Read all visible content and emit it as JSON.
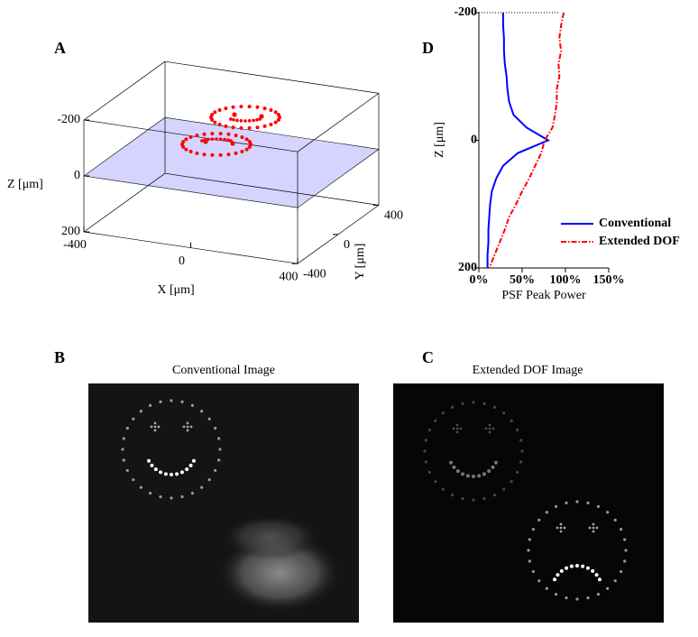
{
  "chart_data": [
    {
      "type": "scatter3d",
      "label": "A",
      "xlabel": "X [μm]",
      "ylabel": "Y [μm]",
      "zlabel": "Z [μm]",
      "xlim": [
        -400,
        400
      ],
      "ylim": [
        -400,
        400
      ],
      "zlim": [
        -200,
        200
      ],
      "xticks": [
        -400,
        0,
        400
      ],
      "yticks": [
        -400,
        0,
        400
      ],
      "zticks": [
        -200,
        0,
        200
      ],
      "plane": {
        "z": 0,
        "color": "#ccccff"
      },
      "color": "#ff0000"
    },
    {
      "type": "image",
      "label": "B",
      "title": "Conventional Image"
    },
    {
      "type": "image",
      "label": "C",
      "title": "Extended DOF Image"
    },
    {
      "type": "line",
      "label": "D",
      "orientation": "horizontal",
      "xlabel": "PSF Peak Power",
      "ylabel": "Z [μm]",
      "z": [
        -200,
        -180,
        -160,
        -140,
        -120,
        -100,
        -80,
        -60,
        -40,
        -20,
        0,
        20,
        40,
        60,
        80,
        100,
        120,
        140,
        160,
        180,
        200
      ],
      "series": [
        {
          "name": "Conventional",
          "color": "#0000ff",
          "style": "solid",
          "values": [
            28,
            28,
            29,
            29,
            30,
            32,
            33,
            35,
            40,
            55,
            80,
            45,
            28,
            20,
            15,
            13,
            12,
            11,
            11,
            10,
            10
          ]
        },
        {
          "name": "Extended DOF",
          "color": "#ff0000",
          "style": "dashdot",
          "values": [
            98,
            95,
            93,
            95,
            92,
            93,
            90,
            90,
            88,
            85,
            76,
            72,
            65,
            58,
            50,
            43,
            35,
            30,
            24,
            18,
            12
          ]
        }
      ],
      "xlim": [
        0,
        150
      ],
      "ylim": [
        -200,
        200
      ],
      "y_inverted": true,
      "xticks": [
        {
          "value": 0,
          "label": "0%"
        },
        {
          "value": 50,
          "label": "50%"
        },
        {
          "value": 100,
          "label": "100%"
        },
        {
          "value": 150,
          "label": "150%"
        }
      ],
      "yticks": [
        -200,
        0,
        200
      ],
      "legend": "lower right"
    }
  ]
}
